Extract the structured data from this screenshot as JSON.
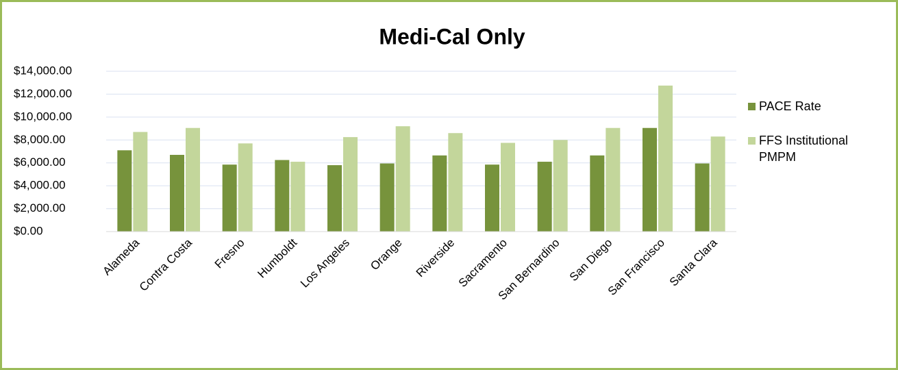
{
  "chart_data": {
    "type": "bar",
    "title": "Medi-Cal Only",
    "categories": [
      "Alameda",
      "Contra Costa",
      "Fresno",
      "Humboldt",
      "Los Angeles",
      "Orange",
      "Riverside",
      "Sacramento",
      "San Bernardino",
      "San Diego",
      "San Francisco",
      "Santa Clara"
    ],
    "series": [
      {
        "name": "PACE Rate",
        "color": "#77933c",
        "values": [
          7100,
          6700,
          5850,
          6250,
          5800,
          5950,
          6650,
          5850,
          6100,
          6650,
          9050,
          5950
        ]
      },
      {
        "name": "FFS Institutional PMPM",
        "color": "#c3d69b",
        "values": [
          8700,
          9050,
          7700,
          6100,
          8250,
          9200,
          8600,
          7750,
          8000,
          9050,
          12750,
          8300
        ]
      }
    ],
    "ylim": [
      0,
      14000
    ],
    "yticks": [
      {
        "value": 0,
        "label": "$0.00"
      },
      {
        "value": 2000,
        "label": "$2,000.00"
      },
      {
        "value": 4000,
        "label": "$4,000.00"
      },
      {
        "value": 6000,
        "label": "$6,000.00"
      },
      {
        "value": 8000,
        "label": "$8,000.00"
      },
      {
        "value": 10000,
        "label": "$10,000.00"
      },
      {
        "value": 12000,
        "label": "$12,000.00"
      },
      {
        "value": 14000,
        "label": "$14,000.00"
      }
    ],
    "grid": true,
    "legend": "right"
  }
}
